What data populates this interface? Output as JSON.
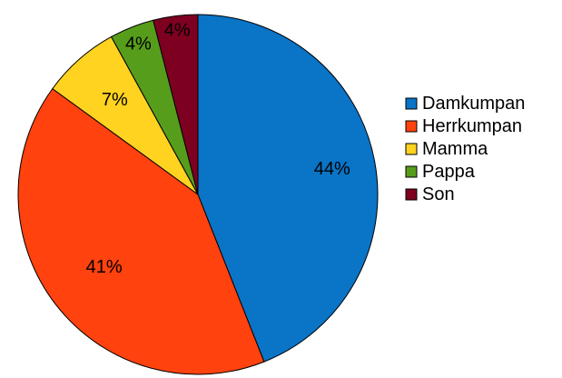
{
  "chart_data": {
    "type": "pie",
    "slices": [
      {
        "name": "Damkumpan",
        "value": 44,
        "label": "44%",
        "color": "#0A74C7"
      },
      {
        "name": "Herrkumpan",
        "value": 41,
        "label": "41%",
        "color": "#FF420E"
      },
      {
        "name": "Mamma",
        "value": 7,
        "label": "7%",
        "color": "#FFD320"
      },
      {
        "name": "Pappa",
        "value": 4,
        "label": "4%",
        "color": "#579D1C"
      },
      {
        "name": "Son",
        "value": 4,
        "label": "4%",
        "color": "#7E0021"
      }
    ],
    "start": "top",
    "direction": "clockwise",
    "legend_position": "right",
    "border_color": "#000000"
  }
}
